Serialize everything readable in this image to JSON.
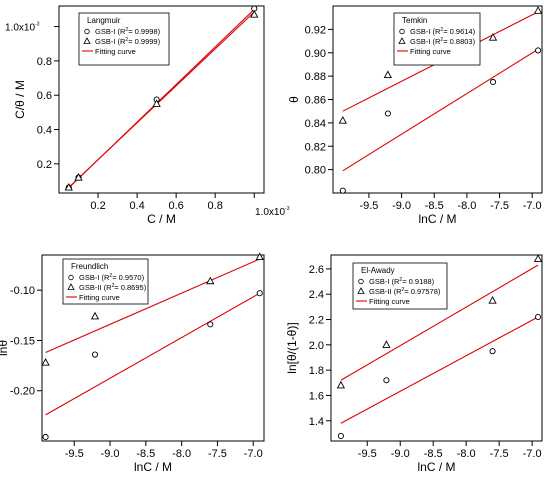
{
  "chart_data": [
    {
      "type": "scatter",
      "legend_title": "Langmuir",
      "xlabel": "C / M",
      "ylabel": "C/θ / M",
      "x_exponent_label": "1.0x10",
      "x_exponent_power": "-3",
      "y_exponent_label": "1.0x10",
      "y_exponent_power": "-3",
      "xlim": [
        0.0,
        1.05
      ],
      "ylim": [
        0.03,
        1.12
      ],
      "x_ticks": [
        0.2,
        0.4,
        0.6,
        0.8,
        1.0
      ],
      "x_tick_labels": [
        "0.2",
        "0.4",
        "0.6",
        "0.8",
        ""
      ],
      "y_ticks": [
        0.2,
        0.4,
        0.6,
        0.8,
        1.0
      ],
      "y_tick_labels": [
        "0.2",
        "0.4",
        "0.6",
        "0.8",
        ""
      ],
      "legend_position": "top-left",
      "fit_label": "Fitting curve",
      "series": [
        {
          "name": "GSB-I",
          "r2_label": "R",
          "r2_value": "= 0.9998)",
          "marker": "circle",
          "x": [
            0.05,
            0.1,
            0.5,
            1.0
          ],
          "y": [
            0.062,
            0.12,
            0.575,
            1.105
          ],
          "fit": [
            [
              0.05,
              0.06
            ],
            [
              1.0,
              1.1
            ]
          ]
        },
        {
          "name": "GSB-I",
          "r2_label": "R",
          "r2_value": "= 0.9999)",
          "marker": "triangle",
          "x": [
            0.05,
            0.1,
            0.5,
            1.0
          ],
          "y": [
            0.062,
            0.12,
            0.55,
            1.07
          ],
          "fit": [
            [
              0.05,
              0.063
            ],
            [
              1.0,
              1.085
            ]
          ]
        }
      ]
    },
    {
      "type": "scatter",
      "legend_title": "Temkin",
      "xlabel": "lnC / M",
      "ylabel": "θ",
      "xlim": [
        -10.05,
        -6.85
      ],
      "ylim": [
        0.78,
        0.94
      ],
      "x_ticks": [
        -9.5,
        -9.0,
        -8.5,
        -8.0,
        -7.5,
        -7.0
      ],
      "x_tick_labels": [
        "-9.5",
        "-9.0",
        "-8.5",
        "-8.0",
        "-7.5",
        "-7.0"
      ],
      "y_ticks": [
        0.8,
        0.82,
        0.84,
        0.86,
        0.88,
        0.9,
        0.92
      ],
      "y_tick_labels": [
        "0.80",
        "0.82",
        "0.84",
        "0.86",
        "0.88",
        "0.90",
        "0.92"
      ],
      "legend_position": "top-center",
      "fit_label": "Fitting curve",
      "series": [
        {
          "name": "GSB-I",
          "r2_label": "R",
          "r2_value": "= 0.9614)",
          "marker": "circle",
          "x": [
            -9.9,
            -9.21,
            -7.6,
            -6.91
          ],
          "y": [
            0.782,
            0.848,
            0.875,
            0.902
          ],
          "fit": [
            [
              -9.9,
              0.799
            ],
            [
              -6.91,
              0.903
            ]
          ]
        },
        {
          "name": "GSB-I",
          "r2_label": "R",
          "r2_value": "= 0.8803)",
          "marker": "triangle",
          "x": [
            -9.9,
            -9.21,
            -7.6,
            -6.91
          ],
          "y": [
            0.842,
            0.881,
            0.913,
            0.936
          ],
          "fit": [
            [
              -9.9,
              0.85
            ],
            [
              -6.91,
              0.935
            ]
          ]
        }
      ]
    },
    {
      "type": "scatter",
      "legend_title": "Freundlich",
      "xlabel": "lnC / M",
      "ylabel": "lnθ",
      "xlim": [
        -9.95,
        -6.85
      ],
      "ylim": [
        -0.25,
        -0.065
      ],
      "x_ticks": [
        -9.5,
        -9.0,
        -8.5,
        -8.0,
        -7.5,
        -7.0
      ],
      "x_tick_labels": [
        "-9.5",
        "-9.0",
        "-8.5",
        "-8.0",
        "-7.5",
        "-7.0"
      ],
      "y_ticks": [
        -0.2,
        -0.15,
        -0.1
      ],
      "y_tick_labels": [
        "-0.20",
        "-0.15",
        "-0.10"
      ],
      "legend_position": "top-left",
      "fit_label": "Fitting curve",
      "series": [
        {
          "name": "GSB-I",
          "r2_label": "R",
          "r2_value": "= 0.9570)",
          "marker": "circle",
          "x": [
            -9.9,
            -9.21,
            -7.6,
            -6.91
          ],
          "y": [
            -0.246,
            -0.164,
            -0.134,
            -0.103
          ],
          "fit": [
            [
              -9.9,
              -0.224
            ],
            [
              -6.91,
              -0.103
            ]
          ]
        },
        {
          "name": "GSB-II",
          "r2_label": "R",
          "r2_value": "= 0.8695)",
          "marker": "triangle",
          "x": [
            -9.9,
            -9.21,
            -7.6,
            -6.91
          ],
          "y": [
            -0.172,
            -0.126,
            -0.091,
            -0.067
          ],
          "fit": [
            [
              -9.9,
              -0.162
            ],
            [
              -6.91,
              -0.069
            ]
          ]
        }
      ]
    },
    {
      "type": "scatter",
      "legend_title": "El-Awady",
      "xlabel": "lnC / M",
      "ylabel": "ln[θ/(1-θ)]",
      "xlim": [
        -10.05,
        -6.85
      ],
      "ylim": [
        1.24,
        2.71
      ],
      "x_ticks": [
        -9.5,
        -9.0,
        -8.5,
        -8.0,
        -7.5,
        -7.0
      ],
      "x_tick_labels": [
        "-9.5",
        "-9.0",
        "-8.5",
        "-8.0",
        "-7.5",
        "-7.0"
      ],
      "y_ticks": [
        1.4,
        1.6,
        1.8,
        2.0,
        2.2,
        2.4,
        2.6
      ],
      "y_tick_labels": [
        "1.4",
        "1.6",
        "1.8",
        "2.0",
        "2.2",
        "2.4",
        "2.6"
      ],
      "legend_position": "top-left",
      "fit_label": "Fitting curve",
      "series": [
        {
          "name": "GSB-I",
          "r2_label": "R",
          "r2_value": "= 0.9188)",
          "marker": "circle",
          "x": [
            -9.9,
            -9.21,
            -7.6,
            -6.91
          ],
          "y": [
            1.28,
            1.72,
            1.95,
            2.22
          ],
          "fit": [
            [
              -9.9,
              1.38
            ],
            [
              -6.91,
              2.22
            ]
          ]
        },
        {
          "name": "GSB-II",
          "r2_label": "R",
          "r2_value": "= 0.97578)",
          "marker": "triangle",
          "x": [
            -9.9,
            -9.21,
            -7.6,
            -6.91
          ],
          "y": [
            1.68,
            2.0,
            2.35,
            2.68
          ],
          "fit": [
            [
              -9.9,
              1.72
            ],
            [
              -6.91,
              2.63
            ]
          ]
        }
      ]
    }
  ]
}
